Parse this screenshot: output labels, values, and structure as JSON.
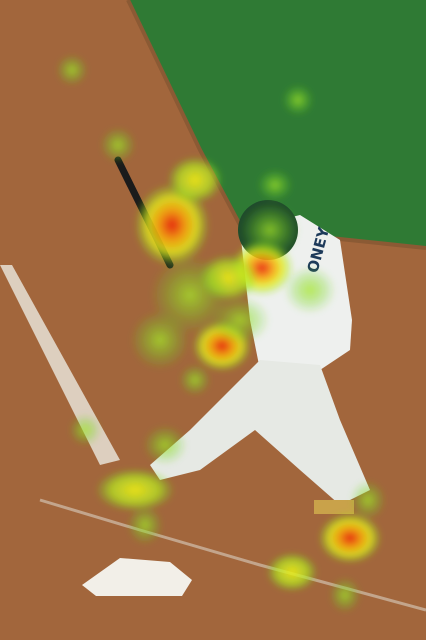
{
  "image": {
    "jersey_text": "ONEY"
  }
}
